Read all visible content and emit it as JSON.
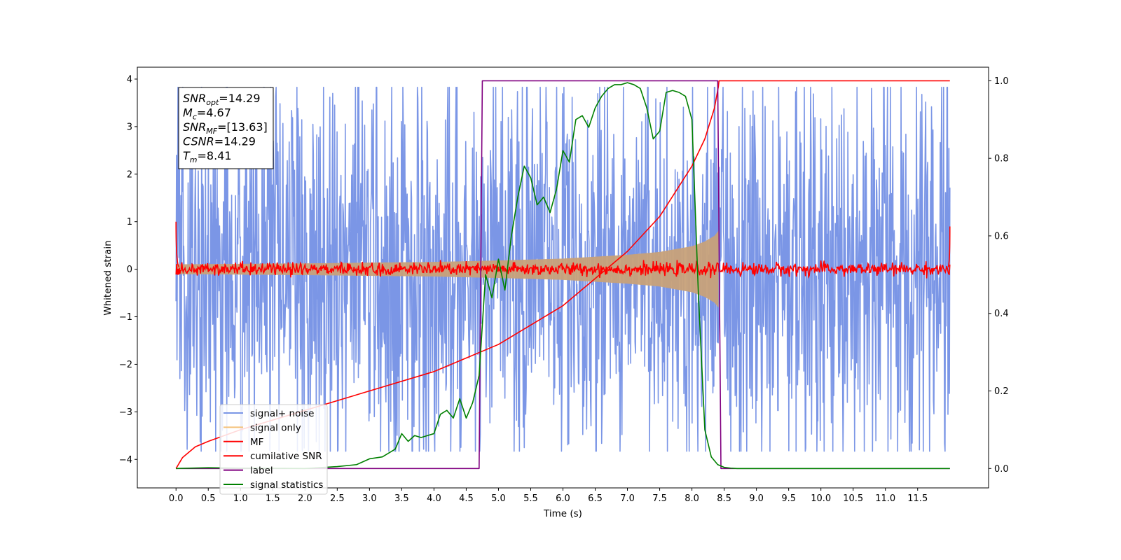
{
  "chart_data": {
    "type": "line",
    "xlabel": "Time (s)",
    "ylabel": "Whitened strain",
    "xlim": [
      -0.6,
      12.6
    ],
    "ylim": [
      -4.6,
      4.25
    ],
    "ylim_right": [
      -0.05,
      1.035
    ],
    "x_ticks": [
      "0.0",
      "0.5",
      "1.0",
      "1.5",
      "2.0",
      "2.5",
      "3.0",
      "3.5",
      "4.0",
      "4.5",
      "5.0",
      "5.5",
      "6.0",
      "6.5",
      "7.0",
      "7.5",
      "8.0",
      "8.5",
      "9.0",
      "9.5",
      "10.0",
      "10.5",
      "11.0",
      "11.5"
    ],
    "y_ticks_left": [
      "4",
      "3",
      "2",
      "1",
      "0",
      "−1",
      "−2",
      "−3",
      "−4"
    ],
    "y_ticks_right": [
      "1.0",
      "0.8",
      "0.6",
      "0.4",
      "0.2",
      "0.0"
    ],
    "grid": false,
    "legend_position": "lower-left",
    "legend": [
      {
        "label": "signal+ noise",
        "color": "#7b96e6"
      },
      {
        "label": "signal only",
        "color": "#f5c27a"
      },
      {
        "label": "MF",
        "color": "#ff0000"
      },
      {
        "label": "cumilative SNR",
        "color": "#ff0000"
      },
      {
        "label": "label",
        "color": "#800080"
      },
      {
        "label": "signal statistics",
        "color": "#008000"
      }
    ],
    "stats_box": [
      {
        "main": "SNR",
        "sub": "opt",
        "rest": "=14.29"
      },
      {
        "main": "M",
        "sub": "c",
        "rest": "=4.67"
      },
      {
        "main": "SNR",
        "sub": "MF",
        "rest": "=[13.63]"
      },
      {
        "main": "CSNR",
        "sub": "",
        "rest": "=14.29"
      },
      {
        "main": "T",
        "sub": "m",
        "rest": "=8.41"
      }
    ],
    "series": [
      {
        "name": "signal+ noise",
        "axis": "left",
        "color": "#7b96e6",
        "envelope": {
          "x": [
            0.0,
            12.0
          ],
          "upper": [
            2.9,
            2.9
          ],
          "lower": [
            -2.9,
            -2.9
          ]
        }
      },
      {
        "name": "signal only",
        "axis": "left",
        "color": "#c8a27a",
        "envelope": {
          "x": [
            0.0,
            2.0,
            4.0,
            5.0,
            6.0,
            7.0,
            7.5,
            8.0,
            8.2,
            8.35,
            8.41
          ],
          "upper": [
            0.1,
            0.12,
            0.15,
            0.18,
            0.22,
            0.3,
            0.36,
            0.48,
            0.58,
            0.7,
            0.8
          ],
          "lower": [
            -0.1,
            -0.12,
            -0.15,
            -0.18,
            -0.22,
            -0.3,
            -0.36,
            -0.48,
            -0.58,
            -0.7,
            -0.8
          ]
        }
      },
      {
        "name": "MF",
        "axis": "left",
        "color": "#ff0000",
        "envelope": {
          "x": [
            0.0,
            12.0
          ],
          "upper": [
            0.12,
            0.12
          ],
          "lower": [
            -0.12,
            -0.12
          ]
        }
      },
      {
        "name": "cumilative SNR",
        "axis": "right",
        "color": "#ff0000",
        "x": [
          0.0,
          0.1,
          0.3,
          0.5,
          1.0,
          1.5,
          2.0,
          3.0,
          4.0,
          5.0,
          6.0,
          7.0,
          7.5,
          8.0,
          8.2,
          8.35,
          8.41,
          8.42,
          12.0
        ],
        "values": [
          0.0,
          0.028,
          0.056,
          0.07,
          0.1,
          0.125,
          0.15,
          0.2,
          0.25,
          0.32,
          0.42,
          0.56,
          0.65,
          0.78,
          0.85,
          0.93,
          0.985,
          1.0,
          1.0
        ]
      },
      {
        "name": "label",
        "axis": "right",
        "color": "#800080",
        "x": [
          0.0,
          4.7,
          4.75,
          8.4,
          8.45,
          12.0
        ],
        "values": [
          0.0,
          0.0,
          1.0,
          1.0,
          0.0,
          0.0
        ]
      },
      {
        "name": "signal statistics",
        "axis": "right",
        "color": "#008000",
        "x": [
          0.0,
          0.5,
          1.0,
          2.0,
          2.5,
          2.8,
          3.0,
          3.2,
          3.4,
          3.5,
          3.6,
          3.7,
          3.8,
          3.9,
          4.0,
          4.1,
          4.2,
          4.3,
          4.4,
          4.5,
          4.6,
          4.7,
          4.8,
          4.9,
          5.0,
          5.1,
          5.2,
          5.3,
          5.4,
          5.5,
          5.6,
          5.7,
          5.8,
          5.9,
          6.0,
          6.1,
          6.2,
          6.3,
          6.4,
          6.5,
          6.6,
          6.7,
          6.8,
          6.9,
          7.0,
          7.1,
          7.2,
          7.3,
          7.4,
          7.5,
          7.6,
          7.7,
          7.8,
          7.9,
          8.0,
          8.1,
          8.2,
          8.3,
          8.4,
          8.5,
          8.6,
          8.7,
          8.8,
          9.0,
          9.5,
          10.0,
          11.0,
          12.0
        ],
        "values": [
          0.0,
          0.002,
          0.001,
          0.0,
          0.005,
          0.01,
          0.025,
          0.03,
          0.05,
          0.09,
          0.07,
          0.085,
          0.08,
          0.085,
          0.09,
          0.14,
          0.15,
          0.13,
          0.18,
          0.13,
          0.17,
          0.24,
          0.5,
          0.44,
          0.54,
          0.46,
          0.6,
          0.7,
          0.78,
          0.75,
          0.68,
          0.7,
          0.66,
          0.72,
          0.82,
          0.79,
          0.9,
          0.91,
          0.88,
          0.93,
          0.96,
          0.98,
          0.99,
          0.99,
          0.995,
          0.99,
          0.98,
          0.93,
          0.85,
          0.87,
          0.97,
          0.975,
          0.97,
          0.96,
          0.9,
          0.45,
          0.1,
          0.03,
          0.01,
          0.003,
          0.001,
          0.0,
          0.0,
          0.0,
          0.0,
          0.0,
          0.0,
          0.0
        ]
      }
    ]
  }
}
